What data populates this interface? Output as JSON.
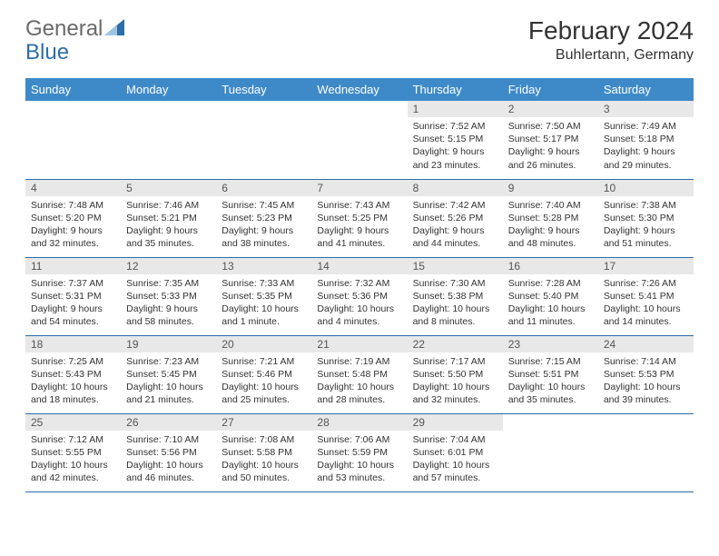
{
  "logo": {
    "word1": "General",
    "word2": "Blue"
  },
  "title": "February 2024",
  "location": "Buhlertann, Germany",
  "colors": {
    "header_bg": "#3e8ac8",
    "header_text": "#ffffff",
    "row_border": "#2d6da8",
    "daynum_bg": "#e8e8e8",
    "logo_gray": "#6a6a6a",
    "logo_blue": "#2d6da8"
  },
  "day_headers": [
    "Sunday",
    "Monday",
    "Tuesday",
    "Wednesday",
    "Thursday",
    "Friday",
    "Saturday"
  ],
  "weeks": [
    [
      null,
      null,
      null,
      null,
      {
        "n": "1",
        "sunrise": "7:52 AM",
        "sunset": "5:15 PM",
        "daylight": "9 hours and 23 minutes."
      },
      {
        "n": "2",
        "sunrise": "7:50 AM",
        "sunset": "5:17 PM",
        "daylight": "9 hours and 26 minutes."
      },
      {
        "n": "3",
        "sunrise": "7:49 AM",
        "sunset": "5:18 PM",
        "daylight": "9 hours and 29 minutes."
      }
    ],
    [
      {
        "n": "4",
        "sunrise": "7:48 AM",
        "sunset": "5:20 PM",
        "daylight": "9 hours and 32 minutes."
      },
      {
        "n": "5",
        "sunrise": "7:46 AM",
        "sunset": "5:21 PM",
        "daylight": "9 hours and 35 minutes."
      },
      {
        "n": "6",
        "sunrise": "7:45 AM",
        "sunset": "5:23 PM",
        "daylight": "9 hours and 38 minutes."
      },
      {
        "n": "7",
        "sunrise": "7:43 AM",
        "sunset": "5:25 PM",
        "daylight": "9 hours and 41 minutes."
      },
      {
        "n": "8",
        "sunrise": "7:42 AM",
        "sunset": "5:26 PM",
        "daylight": "9 hours and 44 minutes."
      },
      {
        "n": "9",
        "sunrise": "7:40 AM",
        "sunset": "5:28 PM",
        "daylight": "9 hours and 48 minutes."
      },
      {
        "n": "10",
        "sunrise": "7:38 AM",
        "sunset": "5:30 PM",
        "daylight": "9 hours and 51 minutes."
      }
    ],
    [
      {
        "n": "11",
        "sunrise": "7:37 AM",
        "sunset": "5:31 PM",
        "daylight": "9 hours and 54 minutes."
      },
      {
        "n": "12",
        "sunrise": "7:35 AM",
        "sunset": "5:33 PM",
        "daylight": "9 hours and 58 minutes."
      },
      {
        "n": "13",
        "sunrise": "7:33 AM",
        "sunset": "5:35 PM",
        "daylight": "10 hours and 1 minute."
      },
      {
        "n": "14",
        "sunrise": "7:32 AM",
        "sunset": "5:36 PM",
        "daylight": "10 hours and 4 minutes."
      },
      {
        "n": "15",
        "sunrise": "7:30 AM",
        "sunset": "5:38 PM",
        "daylight": "10 hours and 8 minutes."
      },
      {
        "n": "16",
        "sunrise": "7:28 AM",
        "sunset": "5:40 PM",
        "daylight": "10 hours and 11 minutes."
      },
      {
        "n": "17",
        "sunrise": "7:26 AM",
        "sunset": "5:41 PM",
        "daylight": "10 hours and 14 minutes."
      }
    ],
    [
      {
        "n": "18",
        "sunrise": "7:25 AM",
        "sunset": "5:43 PM",
        "daylight": "10 hours and 18 minutes."
      },
      {
        "n": "19",
        "sunrise": "7:23 AM",
        "sunset": "5:45 PM",
        "daylight": "10 hours and 21 minutes."
      },
      {
        "n": "20",
        "sunrise": "7:21 AM",
        "sunset": "5:46 PM",
        "daylight": "10 hours and 25 minutes."
      },
      {
        "n": "21",
        "sunrise": "7:19 AM",
        "sunset": "5:48 PM",
        "daylight": "10 hours and 28 minutes."
      },
      {
        "n": "22",
        "sunrise": "7:17 AM",
        "sunset": "5:50 PM",
        "daylight": "10 hours and 32 minutes."
      },
      {
        "n": "23",
        "sunrise": "7:15 AM",
        "sunset": "5:51 PM",
        "daylight": "10 hours and 35 minutes."
      },
      {
        "n": "24",
        "sunrise": "7:14 AM",
        "sunset": "5:53 PM",
        "daylight": "10 hours and 39 minutes."
      }
    ],
    [
      {
        "n": "25",
        "sunrise": "7:12 AM",
        "sunset": "5:55 PM",
        "daylight": "10 hours and 42 minutes."
      },
      {
        "n": "26",
        "sunrise": "7:10 AM",
        "sunset": "5:56 PM",
        "daylight": "10 hours and 46 minutes."
      },
      {
        "n": "27",
        "sunrise": "7:08 AM",
        "sunset": "5:58 PM",
        "daylight": "10 hours and 50 minutes."
      },
      {
        "n": "28",
        "sunrise": "7:06 AM",
        "sunset": "5:59 PM",
        "daylight": "10 hours and 53 minutes."
      },
      {
        "n": "29",
        "sunrise": "7:04 AM",
        "sunset": "6:01 PM",
        "daylight": "10 hours and 57 minutes."
      },
      null,
      null
    ]
  ],
  "labels": {
    "sunrise": "Sunrise:",
    "sunset": "Sunset:",
    "daylight": "Daylight:"
  }
}
